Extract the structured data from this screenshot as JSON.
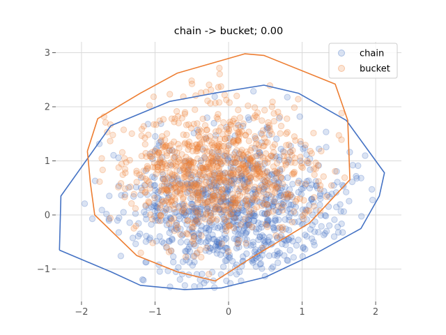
{
  "chart_data": {
    "type": "scatter",
    "title": "chain -> bucket; 0.00",
    "xlabel": "",
    "ylabel": "",
    "xlim": [
      -2.35,
      2.35
    ],
    "ylim": [
      -1.6,
      3.2
    ],
    "xticks": [
      -2,
      -1,
      0,
      1,
      2
    ],
    "yticks": [
      -1,
      0,
      1,
      2,
      3
    ],
    "grid": true,
    "legend_position": "top-right",
    "series": [
      {
        "name": "chain",
        "color": "#4472C4",
        "distribution": {
          "count": 900,
          "mean_x": 0.05,
          "mean_y": 0.1,
          "sd_x": 0.75,
          "sd_y": 0.7,
          "seed": 11
        },
        "hull": [
          [
            -2.3,
            -0.65
          ],
          [
            -1.6,
            -1.05
          ],
          [
            -1.2,
            -1.3
          ],
          [
            -0.6,
            -1.38
          ],
          [
            -0.1,
            -1.35
          ],
          [
            0.5,
            -1.15
          ],
          [
            1.2,
            -0.7
          ],
          [
            1.8,
            -0.25
          ],
          [
            2.05,
            0.35
          ],
          [
            2.12,
            0.78
          ],
          [
            1.6,
            1.75
          ],
          [
            0.95,
            2.25
          ],
          [
            0.48,
            2.4
          ],
          [
            -0.2,
            2.25
          ],
          [
            -0.8,
            2.1
          ],
          [
            -1.6,
            1.65
          ],
          [
            -2.28,
            0.35
          ]
        ]
      },
      {
        "name": "bucket",
        "color": "#ED7D31",
        "distribution": {
          "count": 900,
          "mean_x": -0.15,
          "mean_y": 0.8,
          "sd_x": 0.65,
          "sd_y": 0.62,
          "seed": 29
        },
        "hull": [
          [
            -1.92,
            1.18
          ],
          [
            -1.78,
            1.78
          ],
          [
            -1.2,
            2.25
          ],
          [
            -0.7,
            2.62
          ],
          [
            0.22,
            2.98
          ],
          [
            0.48,
            2.95
          ],
          [
            1.45,
            2.42
          ],
          [
            1.62,
            1.75
          ],
          [
            1.65,
            0.65
          ],
          [
            1.1,
            -0.15
          ],
          [
            0.3,
            -0.8
          ],
          [
            -0.18,
            -1.22
          ],
          [
            -0.7,
            -1.05
          ],
          [
            -1.25,
            -0.75
          ],
          [
            -1.82,
            0.0
          ],
          [
            -1.88,
            0.6
          ]
        ]
      }
    ]
  }
}
